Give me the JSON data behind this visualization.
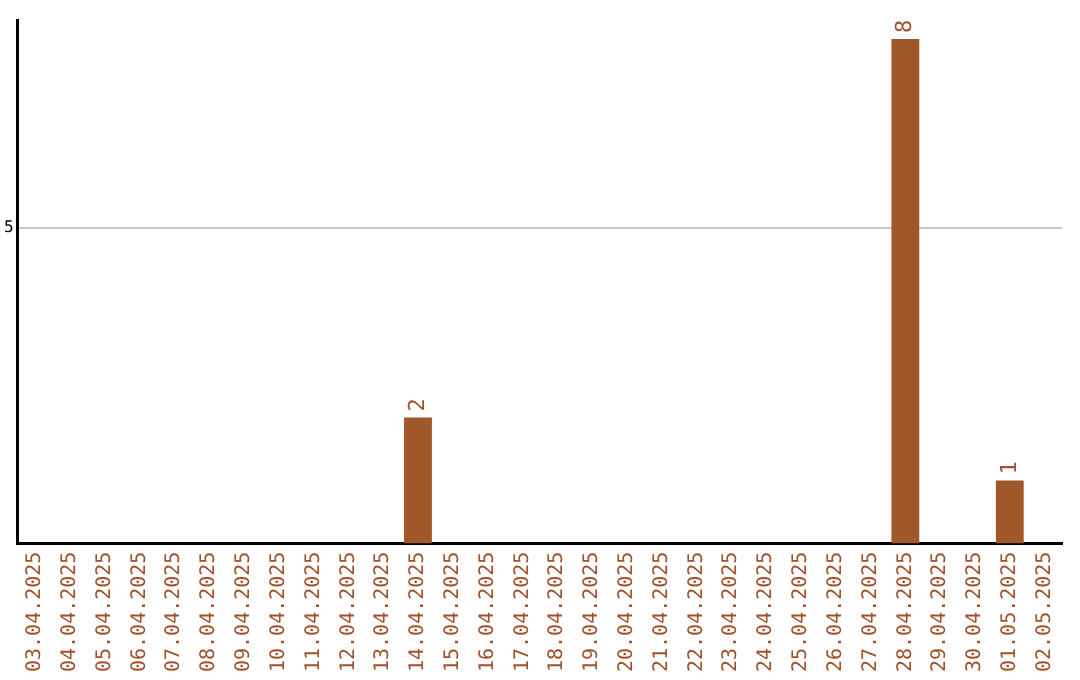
{
  "chart_data": {
    "type": "bar",
    "categories": [
      "03.04.2025",
      "04.04.2025",
      "05.04.2025",
      "06.04.2025",
      "07.04.2025",
      "08.04.2025",
      "09.04.2025",
      "10.04.2025",
      "11.04.2025",
      "12.04.2025",
      "13.04.2025",
      "14.04.2025",
      "15.04.2025",
      "16.04.2025",
      "17.04.2025",
      "18.04.2025",
      "19.04.2025",
      "20.04.2025",
      "21.04.2025",
      "22.04.2025",
      "23.04.2025",
      "24.04.2025",
      "25.04.2025",
      "26.04.2025",
      "27.04.2025",
      "28.04.2025",
      "29.04.2025",
      "30.04.2025",
      "01.05.2025",
      "02.05.2025"
    ],
    "values": [
      0,
      0,
      0,
      0,
      0,
      0,
      0,
      0,
      0,
      0,
      0,
      2,
      0,
      0,
      0,
      0,
      0,
      0,
      0,
      0,
      0,
      0,
      0,
      0,
      0,
      8,
      0,
      0,
      1,
      0
    ],
    "color": "#a0572a",
    "ylim": [
      0,
      8.3
    ],
    "yticks": [
      5
    ],
    "grid": "y",
    "value_labels": [
      null,
      null,
      null,
      null,
      null,
      null,
      null,
      null,
      null,
      null,
      null,
      "2",
      null,
      null,
      null,
      null,
      null,
      null,
      null,
      null,
      null,
      null,
      null,
      null,
      null,
      "8",
      null,
      null,
      "1",
      null
    ],
    "legend": false
  }
}
